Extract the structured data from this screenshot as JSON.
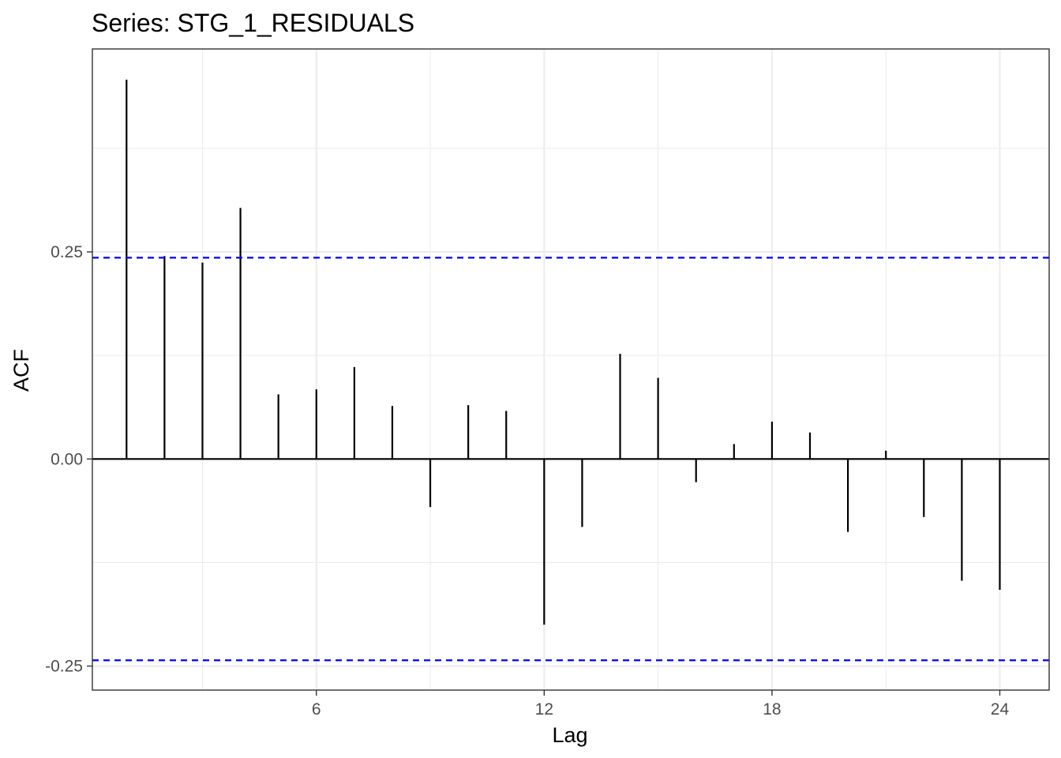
{
  "chart_data": {
    "type": "bar",
    "subtype": "acf-stem",
    "title": "Series: STG_1_RESIDUALS",
    "xlabel": "Lag",
    "ylabel": "ACF",
    "x": [
      1,
      2,
      3,
      4,
      5,
      6,
      7,
      8,
      9,
      10,
      11,
      12,
      13,
      14,
      15,
      16,
      17,
      18,
      19,
      20,
      21,
      22,
      23,
      24
    ],
    "values": [
      0.458,
      0.245,
      0.237,
      0.303,
      0.078,
      0.084,
      0.111,
      0.064,
      -0.058,
      0.065,
      0.058,
      -0.2,
      -0.082,
      0.127,
      0.098,
      -0.028,
      0.018,
      0.045,
      0.032,
      -0.088,
      0.01,
      -0.07,
      -0.147,
      -0.158
    ],
    "confidence_limit": 0.243,
    "confidence_color": "#0000ff",
    "stem_color": "#000000",
    "xlim": [
      0.1,
      25.3
    ],
    "ylim": [
      -0.279,
      0.495
    ],
    "xticks": [
      6,
      12,
      18,
      24
    ],
    "xtick_labels": [
      "6",
      "12",
      "18",
      "24"
    ],
    "yticks": [
      -0.25,
      0.0,
      0.25
    ],
    "ytick_labels": [
      "-0.25",
      "0.00",
      "0.25"
    ],
    "grid": true,
    "grid_color": "#ebebeb",
    "panel_border_color": "#333333"
  }
}
